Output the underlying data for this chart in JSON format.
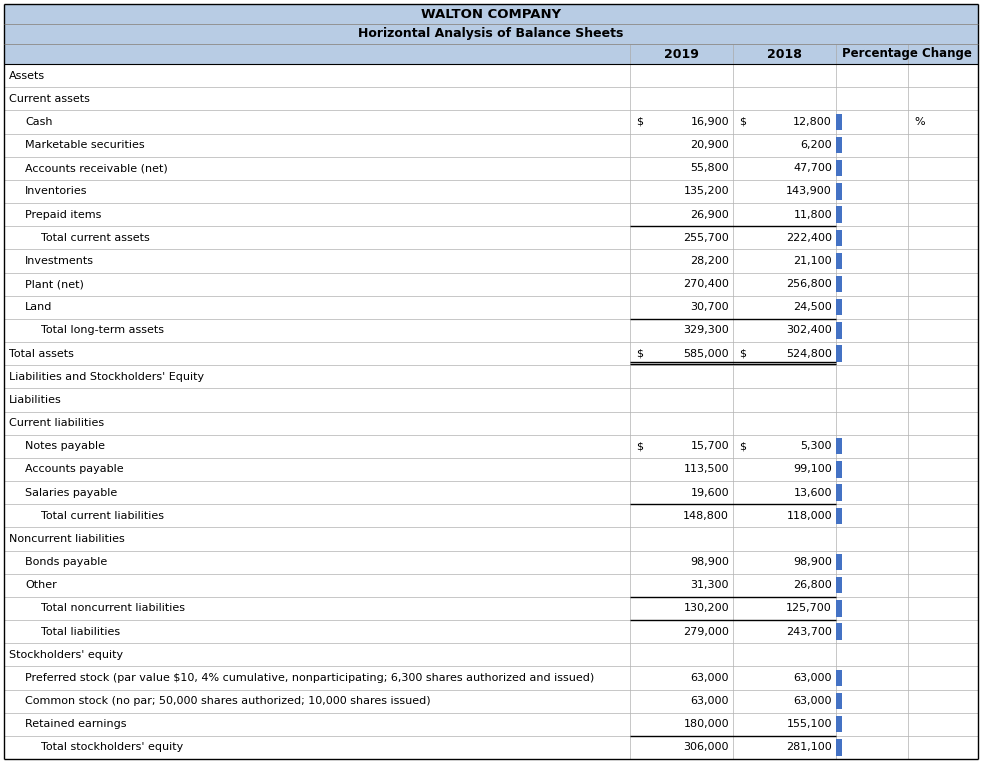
{
  "title1": "WALTON COMPANY",
  "title2": "Horizontal Analysis of Balance Sheets",
  "rows": [
    {
      "label": "Assets",
      "indent": 0,
      "v2019": "",
      "v2018": "",
      "dollar2019": false,
      "dollar2018": false,
      "bold": false,
      "total": false,
      "section_header": true
    },
    {
      "label": "Current assets",
      "indent": 0,
      "v2019": "",
      "v2018": "",
      "dollar2019": false,
      "dollar2018": false,
      "bold": false,
      "total": false,
      "section_header": true
    },
    {
      "label": "Cash",
      "indent": 1,
      "v2019": "16,900",
      "v2018": "12,800",
      "dollar2019": true,
      "dollar2018": true,
      "bold": false,
      "total": false,
      "percent_sign": true
    },
    {
      "label": "Marketable securities",
      "indent": 1,
      "v2019": "20,900",
      "v2018": "6,200",
      "dollar2019": false,
      "dollar2018": false,
      "bold": false,
      "total": false
    },
    {
      "label": "Accounts receivable (net)",
      "indent": 1,
      "v2019": "55,800",
      "v2018": "47,700",
      "dollar2019": false,
      "dollar2018": false,
      "bold": false,
      "total": false
    },
    {
      "label": "Inventories",
      "indent": 1,
      "v2019": "135,200",
      "v2018": "143,900",
      "dollar2019": false,
      "dollar2018": false,
      "bold": false,
      "total": false
    },
    {
      "label": "Prepaid items",
      "indent": 1,
      "v2019": "26,900",
      "v2018": "11,800",
      "dollar2019": false,
      "dollar2018": false,
      "bold": false,
      "total": false
    },
    {
      "label": "Total current assets",
      "indent": 2,
      "v2019": "255,700",
      "v2018": "222,400",
      "dollar2019": false,
      "dollar2018": false,
      "bold": false,
      "total": true
    },
    {
      "label": "Investments",
      "indent": 1,
      "v2019": "28,200",
      "v2018": "21,100",
      "dollar2019": false,
      "dollar2018": false,
      "bold": false,
      "total": false
    },
    {
      "label": "Plant (net)",
      "indent": 1,
      "v2019": "270,400",
      "v2018": "256,800",
      "dollar2019": false,
      "dollar2018": false,
      "bold": false,
      "total": false
    },
    {
      "label": "Land",
      "indent": 1,
      "v2019": "30,700",
      "v2018": "24,500",
      "dollar2019": false,
      "dollar2018": false,
      "bold": false,
      "total": false
    },
    {
      "label": "Total long-term assets",
      "indent": 2,
      "v2019": "329,300",
      "v2018": "302,400",
      "dollar2019": false,
      "dollar2018": false,
      "bold": false,
      "total": true
    },
    {
      "label": "Total assets",
      "indent": 0,
      "v2019": "585,000",
      "v2018": "524,800",
      "dollar2019": true,
      "dollar2018": true,
      "bold": false,
      "total": true,
      "double_underline": true
    },
    {
      "label": "Liabilities and Stockholders' Equity",
      "indent": 0,
      "v2019": "",
      "v2018": "",
      "dollar2019": false,
      "dollar2018": false,
      "bold": false,
      "total": false,
      "section_header": true
    },
    {
      "label": "Liabilities",
      "indent": 0,
      "v2019": "",
      "v2018": "",
      "dollar2019": false,
      "dollar2018": false,
      "bold": false,
      "total": false,
      "section_header": true
    },
    {
      "label": "Current liabilities",
      "indent": 0,
      "v2019": "",
      "v2018": "",
      "dollar2019": false,
      "dollar2018": false,
      "bold": false,
      "total": false,
      "section_header": true
    },
    {
      "label": "Notes payable",
      "indent": 1,
      "v2019": "15,700",
      "v2018": "5,300",
      "dollar2019": true,
      "dollar2018": true,
      "bold": false,
      "total": false
    },
    {
      "label": "Accounts payable",
      "indent": 1,
      "v2019": "113,500",
      "v2018": "99,100",
      "dollar2019": false,
      "dollar2018": false,
      "bold": false,
      "total": false
    },
    {
      "label": "Salaries payable",
      "indent": 1,
      "v2019": "19,600",
      "v2018": "13,600",
      "dollar2019": false,
      "dollar2018": false,
      "bold": false,
      "total": false
    },
    {
      "label": "Total current liabilities",
      "indent": 2,
      "v2019": "148,800",
      "v2018": "118,000",
      "dollar2019": false,
      "dollar2018": false,
      "bold": false,
      "total": true
    },
    {
      "label": "Noncurrent liabilities",
      "indent": 0,
      "v2019": "",
      "v2018": "",
      "dollar2019": false,
      "dollar2018": false,
      "bold": false,
      "total": false,
      "section_header": true
    },
    {
      "label": "Bonds payable",
      "indent": 1,
      "v2019": "98,900",
      "v2018": "98,900",
      "dollar2019": false,
      "dollar2018": false,
      "bold": false,
      "total": false
    },
    {
      "label": "Other",
      "indent": 1,
      "v2019": "31,300",
      "v2018": "26,800",
      "dollar2019": false,
      "dollar2018": false,
      "bold": false,
      "total": false
    },
    {
      "label": "Total noncurrent liabilities",
      "indent": 2,
      "v2019": "130,200",
      "v2018": "125,700",
      "dollar2019": false,
      "dollar2018": false,
      "bold": false,
      "total": true
    },
    {
      "label": "Total liabilities",
      "indent": 2,
      "v2019": "279,000",
      "v2018": "243,700",
      "dollar2019": false,
      "dollar2018": false,
      "bold": false,
      "total": true
    },
    {
      "label": "Stockholders' equity",
      "indent": 0,
      "v2019": "",
      "v2018": "",
      "dollar2019": false,
      "dollar2018": false,
      "bold": false,
      "total": false,
      "section_header": true
    },
    {
      "label": "Preferred stock (par value $10, 4% cumulative, nonparticipating; 6,300 shares authorized and issued)",
      "indent": 1,
      "v2019": "63,000",
      "v2018": "63,000",
      "dollar2019": false,
      "dollar2018": false,
      "bold": false,
      "total": false
    },
    {
      "label": "Common stock (no par; 50,000 shares authorized; 10,000 shares issued)",
      "indent": 1,
      "v2019": "63,000",
      "v2018": "63,000",
      "dollar2019": false,
      "dollar2018": false,
      "bold": false,
      "total": false
    },
    {
      "label": "Retained earnings",
      "indent": 1,
      "v2019": "180,000",
      "v2018": "155,100",
      "dollar2019": false,
      "dollar2018": false,
      "bold": false,
      "total": false
    },
    {
      "label": "Total stockholders' equity",
      "indent": 2,
      "v2019": "306,000",
      "v2018": "281,100",
      "dollar2019": false,
      "dollar2018": false,
      "bold": false,
      "total": true
    }
  ],
  "header_bg": "#b8cce4",
  "white_bg": "#ffffff",
  "border_color": "#000000",
  "text_color": "#000000",
  "blue_bar_color": "#4472c4",
  "font_size": 8.0,
  "header_font_size": 9.5
}
